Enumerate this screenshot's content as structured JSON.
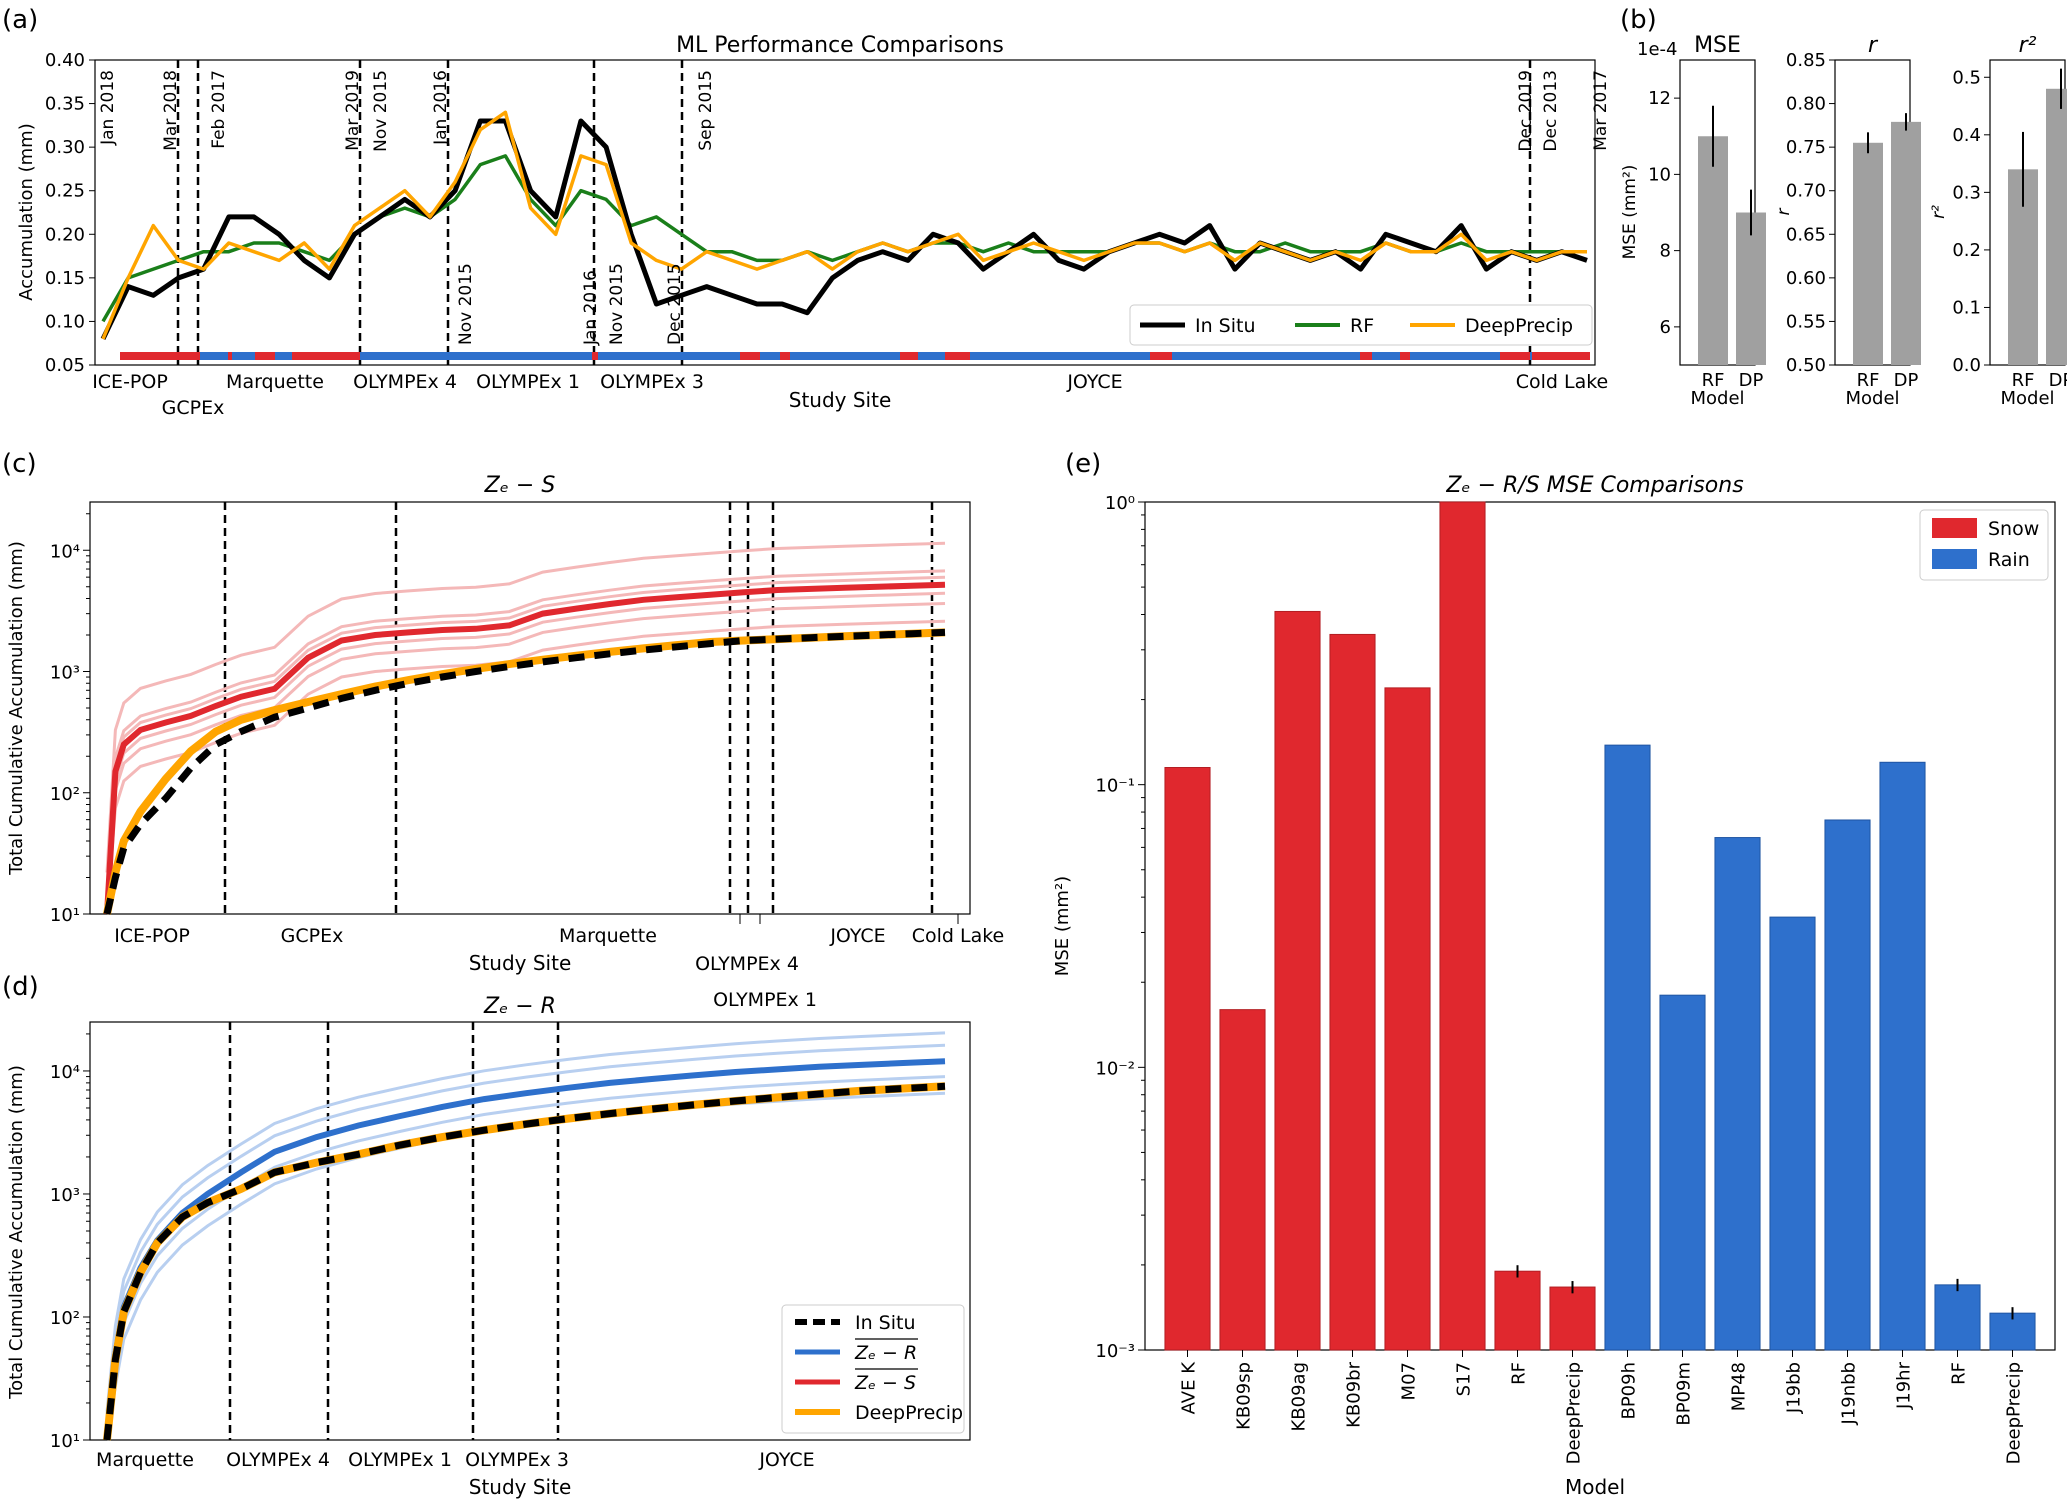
{
  "panels": {
    "a": {
      "letter": "(a)",
      "title": "ML Performance Comparisons",
      "ylabel": "Accumulation (mm)",
      "xlabel": "Study Site",
      "y_ticks": [
        "0.05",
        "0.10",
        "0.15",
        "0.20",
        "0.25",
        "0.30",
        "0.35",
        "0.40"
      ],
      "sites": [
        "ICE-POP",
        "GCPEx",
        "Marquette",
        "OLYMPEx 4",
        "OLYMPEx 1",
        "OLYMPEx 3",
        "JOYCE",
        "Cold Lake"
      ],
      "top_dates": [
        "Jan 2018",
        "Mar 2018",
        "Feb 2017",
        "Mar 2019",
        "Nov 2015",
        "Jan 2016",
        "Sep 2015",
        "Dec 2019",
        "Dec 2013",
        "Mar 2017"
      ],
      "bottom_dates": [
        "Nov 2015",
        "Jan 2016",
        "Nov 2015",
        "Dec 2015"
      ],
      "legend": [
        "In Situ",
        "RF",
        "DeepPrecip"
      ]
    },
    "b": {
      "letter": "(b)",
      "titles": [
        "MSE",
        "r",
        "r²"
      ],
      "mse_exponent": "1e-4",
      "mse_ticks": [
        "6",
        "8",
        "10",
        "12"
      ],
      "r_ticks": [
        "0.50",
        "0.55",
        "0.60",
        "0.65",
        "0.70",
        "0.75",
        "0.80",
        "0.85"
      ],
      "r2_ticks": [
        "0.0",
        "0.1",
        "0.2",
        "0.3",
        "0.4",
        "0.5"
      ],
      "ylabels": [
        "MSE (mm²)",
        "r",
        "r²"
      ],
      "x_categories": [
        "RF",
        "DP"
      ],
      "xlabel": "Model"
    },
    "c": {
      "letter": "(c)",
      "title": "Zₑ − S",
      "ylabel": "Total Cumulative Accumulation (mm)",
      "xlabel": "Study Site",
      "y_ticks": [
        "10¹",
        "10²",
        "10³",
        "10⁴"
      ],
      "sites_row1": [
        "ICE-POP",
        "GCPEx",
        "Marquette",
        "JOYCE",
        "Cold Lake"
      ],
      "sites_row2": [
        "OLYMPEx 4"
      ],
      "sites_row3": [
        "OLYMPEx 1"
      ]
    },
    "d": {
      "letter": "(d)",
      "title": "Zₑ − R",
      "ylabel": "Total Cumulative Accumulation (mm)",
      "xlabel": "Study Site",
      "y_ticks": [
        "10¹",
        "10²",
        "10³",
        "10⁴"
      ],
      "sites": [
        "Marquette",
        "OLYMPEx 4",
        "OLYMPEx 1",
        "OLYMPEx 3",
        "JOYCE"
      ],
      "legend": [
        "In Situ",
        "Zₑ − R",
        "Zₑ − S",
        "DeepPrecip"
      ]
    },
    "e": {
      "letter": "(e)",
      "title": "Zₑ − R/S MSE Comparisons",
      "ylabel": "MSE (mm²)",
      "xlabel": "Model",
      "y_ticks": [
        "10⁻³",
        "10⁻²",
        "10⁻¹",
        "10⁰"
      ],
      "legend": [
        "Snow",
        "Rain"
      ]
    }
  },
  "colors": {
    "insitu": "#000000",
    "rf": "#1a7f1a",
    "deepprecip": "#ffa500",
    "snow": "#e0282e",
    "rain": "#2e70cc",
    "bar_grey": "#a0a0a0"
  },
  "chart_data": [
    {
      "type": "line",
      "panel": "a",
      "title": "ML Performance Comparisons",
      "xlabel": "Study Site",
      "ylabel": "Accumulation (mm)",
      "ylim": [
        0.05,
        0.4
      ],
      "x": [
        0,
        1,
        2,
        3,
        4,
        5,
        6,
        7,
        8,
        9,
        10,
        11,
        12,
        13,
        14,
        15,
        16,
        17,
        18,
        19,
        20,
        21,
        22,
        23,
        24,
        25,
        26,
        27,
        28,
        29,
        30,
        31,
        32,
        33,
        34,
        35,
        36,
        37,
        38,
        39,
        40,
        41,
        42,
        43,
        44,
        45,
        46,
        47,
        48,
        49,
        50,
        51,
        52,
        53,
        54,
        55,
        56,
        57,
        58,
        59
      ],
      "series": [
        {
          "name": "In Situ",
          "values": [
            0.08,
            0.14,
            0.13,
            0.15,
            0.16,
            0.22,
            0.22,
            0.2,
            0.17,
            0.15,
            0.2,
            0.22,
            0.24,
            0.22,
            0.25,
            0.33,
            0.33,
            0.25,
            0.22,
            0.33,
            0.3,
            0.2,
            0.12,
            0.13,
            0.14,
            0.13,
            0.12,
            0.12,
            0.11,
            0.15,
            0.17,
            0.18,
            0.17,
            0.2,
            0.19,
            0.16,
            0.18,
            0.2,
            0.17,
            0.16,
            0.18,
            0.19,
            0.2,
            0.19,
            0.21,
            0.16,
            0.19,
            0.18,
            0.17,
            0.18,
            0.16,
            0.2,
            0.19,
            0.18,
            0.21,
            0.16,
            0.18,
            0.17,
            0.18,
            0.17
          ]
        },
        {
          "name": "RF",
          "values": [
            0.1,
            0.15,
            0.16,
            0.17,
            0.18,
            0.18,
            0.19,
            0.19,
            0.18,
            0.17,
            0.2,
            0.22,
            0.23,
            0.22,
            0.24,
            0.28,
            0.29,
            0.24,
            0.21,
            0.25,
            0.24,
            0.21,
            0.22,
            0.2,
            0.18,
            0.18,
            0.17,
            0.17,
            0.18,
            0.17,
            0.18,
            0.19,
            0.18,
            0.19,
            0.19,
            0.18,
            0.19,
            0.18,
            0.18,
            0.18,
            0.18,
            0.19,
            0.19,
            0.18,
            0.19,
            0.18,
            0.18,
            0.19,
            0.18,
            0.18,
            0.18,
            0.19,
            0.18,
            0.18,
            0.19,
            0.18,
            0.18,
            0.18,
            0.18,
            0.18
          ]
        },
        {
          "name": "DeepPrecip",
          "values": [
            0.08,
            0.15,
            0.21,
            0.17,
            0.16,
            0.19,
            0.18,
            0.17,
            0.19,
            0.16,
            0.21,
            0.23,
            0.25,
            0.22,
            0.26,
            0.32,
            0.34,
            0.23,
            0.2,
            0.29,
            0.28,
            0.19,
            0.17,
            0.16,
            0.18,
            0.17,
            0.16,
            0.17,
            0.18,
            0.16,
            0.18,
            0.19,
            0.18,
            0.19,
            0.2,
            0.17,
            0.18,
            0.19,
            0.18,
            0.17,
            0.18,
            0.19,
            0.19,
            0.18,
            0.19,
            0.17,
            0.19,
            0.18,
            0.17,
            0.18,
            0.17,
            0.19,
            0.18,
            0.18,
            0.2,
            0.17,
            0.18,
            0.17,
            0.18,
            0.18
          ]
        }
      ]
    },
    {
      "type": "bar",
      "panel": "b",
      "categories": [
        "RF",
        "DP"
      ],
      "series": [
        {
          "name": "MSE",
          "values": [
            11.0,
            9.0
          ],
          "errors": [
            0.8,
            0.6
          ],
          "ylim": [
            5,
            13
          ]
        },
        {
          "name": "r",
          "values": [
            0.755,
            0.779
          ],
          "errors": [
            0.012,
            0.01
          ],
          "ylim": [
            0.5,
            0.85
          ]
        },
        {
          "name": "r²",
          "values": [
            0.34,
            0.48
          ],
          "errors": [
            0.065,
            0.035
          ],
          "ylim": [
            0.0,
            0.53
          ]
        }
      ]
    },
    {
      "type": "line",
      "panel": "c",
      "title": "Zₑ − S",
      "xlabel": "Study Site",
      "ylabel": "Total Cumulative Accumulation (mm)",
      "y_log": true,
      "ylim": [
        10,
        25000
      ],
      "x": [
        0,
        1,
        2,
        4,
        7,
        10,
        13,
        16,
        20,
        24,
        28,
        32,
        36,
        40,
        44,
        48,
        52,
        56,
        60,
        64,
        68,
        72,
        76,
        80,
        84,
        88,
        92,
        96,
        100
      ],
      "series": [
        {
          "name": "Zₑ − S",
          "values": [
            10,
            150,
            250,
            330,
            380,
            430,
            520,
            620,
            720,
            1300,
            1800,
            2000,
            2100,
            2200,
            2250,
            2400,
            3000,
            3300,
            3600,
            3900,
            4100,
            4300,
            4500,
            4700,
            4800,
            4900,
            5000,
            5100,
            5200
          ]
        },
        {
          "name": "In Situ",
          "values": [
            10,
            20,
            35,
            55,
            90,
            160,
            250,
            320,
            420,
            500,
            600,
            700,
            800,
            900,
            1000,
            1100,
            1200,
            1300,
            1400,
            1500,
            1600,
            1700,
            1800,
            1850,
            1900,
            1950,
            2000,
            2050,
            2100
          ]
        },
        {
          "name": "DeepPrecip",
          "values": [
            10,
            22,
            40,
            70,
            130,
            220,
            320,
            400,
            480,
            560,
            650,
            750,
            850,
            950,
            1050,
            1150,
            1250,
            1350,
            1450,
            1550,
            1650,
            1750,
            1800,
            1850,
            1900,
            1950,
            2000,
            2050,
            2100
          ]
        }
      ]
    },
    {
      "type": "line",
      "panel": "d",
      "title": "Zₑ − R",
      "xlabel": "Study Site",
      "ylabel": "Total Cumulative Accumulation (mm)",
      "y_log": true,
      "ylim": [
        10,
        25000
      ],
      "x": [
        0,
        1,
        2,
        4,
        6,
        9,
        12,
        16,
        20,
        25,
        30,
        35,
        40,
        45,
        50,
        55,
        60,
        65,
        70,
        75,
        80,
        85,
        90,
        95,
        100
      ],
      "series": [
        {
          "name": "Zₑ − R",
          "values": [
            10,
            50,
            120,
            250,
            420,
            700,
            1000,
            1500,
            2200,
            2900,
            3600,
            4300,
            5100,
            5900,
            6600,
            7300,
            8000,
            8600,
            9200,
            9800,
            10300,
            10800,
            11200,
            11600,
            12000
          ]
        },
        {
          "name": "In Situ",
          "values": [
            10,
            45,
            110,
            230,
            400,
            650,
            850,
            1100,
            1500,
            1800,
            2100,
            2500,
            2900,
            3300,
            3700,
            4100,
            4500,
            4900,
            5300,
            5700,
            6100,
            6500,
            6900,
            7200,
            7500
          ]
        },
        {
          "name": "DeepPrecip",
          "values": [
            10,
            45,
            110,
            230,
            400,
            650,
            850,
            1100,
            1500,
            1800,
            2100,
            2500,
            2900,
            3300,
            3700,
            4100,
            4500,
            4900,
            5300,
            5700,
            6100,
            6500,
            6900,
            7200,
            7500
          ]
        }
      ]
    },
    {
      "type": "bar",
      "panel": "e",
      "title": "Zₑ − R/S MSE Comparisons",
      "xlabel": "Model",
      "ylabel": "MSE (mm²)",
      "y_log": true,
      "ylim": [
        0.001,
        1.0
      ],
      "categories": [
        "AVE K",
        "KB09sp",
        "KB09ag",
        "KB09br",
        "M07",
        "S17",
        "RF",
        "DeepPrecip",
        "BP09h",
        "BP09m",
        "MP48",
        "J19bb",
        "J19nbb",
        "J19hr",
        "RF",
        "DeepPrecip"
      ],
      "series": [
        {
          "name": "Snow",
          "values": [
            0.115,
            0.016,
            0.41,
            0.34,
            0.22,
            1.0,
            0.0019,
            0.00167,
            null,
            null,
            null,
            null,
            null,
            null,
            null,
            null
          ]
        },
        {
          "name": "Rain",
          "values": [
            null,
            null,
            null,
            null,
            null,
            null,
            null,
            null,
            0.138,
            0.018,
            0.065,
            0.034,
            0.075,
            0.12,
            0.0017,
            0.00135
          ]
        }
      ]
    }
  ]
}
